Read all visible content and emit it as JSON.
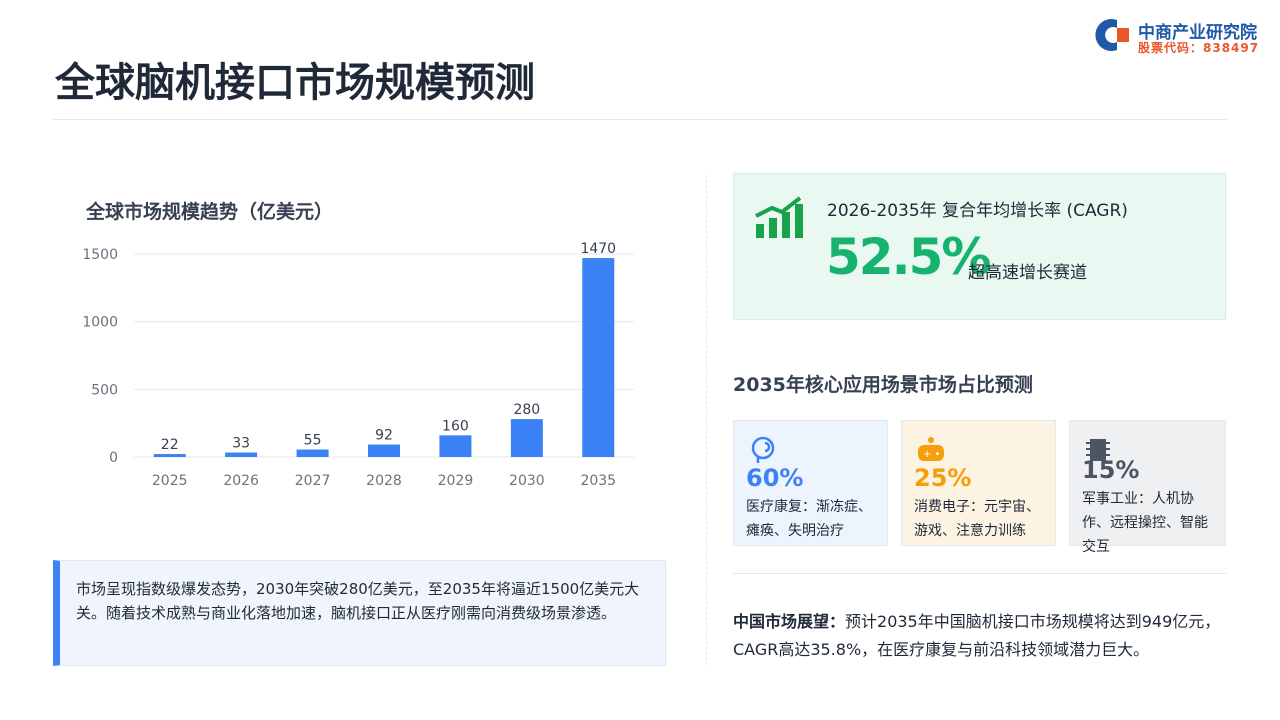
{
  "header": {
    "title": "全球脑机接口市场规模预测",
    "logo_name": "中商产业研究院",
    "logo_code": "股票代码：838497"
  },
  "chart_data": {
    "type": "bar",
    "title": "全球市场规模趋势（亿美元）",
    "categories": [
      "2025",
      "2026",
      "2027",
      "2028",
      "2029",
      "2030",
      "2035"
    ],
    "values": [
      22,
      33,
      55,
      92,
      160,
      280,
      1470
    ],
    "color": "#3b82f6",
    "ylim": [
      0,
      1500
    ],
    "yticks": [
      0,
      500,
      1000,
      1500
    ],
    "grid": true
  },
  "summary": "市场呈现指数级爆发态势，2030年突破280亿美元，至2035年将逼近1500亿美元大关。随着技术成熟与商业化落地加速，脑机接口正从医疗刚需向消费级场景渗透。",
  "cagr": {
    "label": "2026-2035年 复合年均增长率 (CAGR)",
    "value": "52.5%",
    "note": "超高速增长赛道"
  },
  "share": {
    "title": "2035年核心应用场景市场占比预测",
    "items": [
      {
        "value": "60%",
        "label": "医疗康复：渐冻症、瘫痪、失明治疗"
      },
      {
        "value": "25%",
        "label": "消费电子：元宇宙、游戏、注意力训练"
      },
      {
        "value": "15%",
        "label": "军事工业：人机协作、远程操控、智能交互"
      }
    ]
  },
  "china": {
    "label": "中国市场展望：",
    "text": "预计2035年中国脑机接口市场规模将达到949亿元，CAGR高达35.8%，在医疗康复与前沿科技领域潜力巨大。"
  }
}
